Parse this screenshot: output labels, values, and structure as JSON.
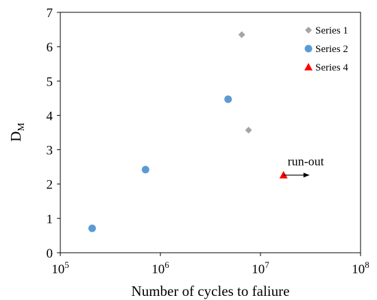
{
  "chart_data": {
    "type": "scatter",
    "title": "",
    "xlabel": "Number of cycles to faliure",
    "ylabel": "D",
    "ylabel_sub": "M",
    "xscale": "log",
    "xlim": [
      100000,
      100000000
    ],
    "ylim": [
      0,
      7
    ],
    "x_ticks": [
      {
        "value": 100000,
        "base": "10",
        "exp": "5"
      },
      {
        "value": 1000000,
        "base": "10",
        "exp": "6"
      },
      {
        "value": 10000000,
        "base": "10",
        "exp": "7"
      },
      {
        "value": 100000000,
        "base": "10",
        "exp": "8"
      }
    ],
    "y_ticks": [
      "0",
      "1",
      "2",
      "3",
      "4",
      "5",
      "6",
      "7"
    ],
    "grid": false,
    "legend_position": "top-right",
    "series": [
      {
        "name": "Series 1",
        "marker": "diamond",
        "color": "#a5a5a5",
        "points": [
          {
            "x": 6500000,
            "y": 6.35
          },
          {
            "x": 7600000,
            "y": 3.57
          }
        ]
      },
      {
        "name": "Series 2",
        "marker": "circle",
        "color": "#5b9bd5",
        "points": [
          {
            "x": 208000,
            "y": 0.71
          },
          {
            "x": 710000,
            "y": 2.42
          },
          {
            "x": 4750000,
            "y": 4.47
          }
        ]
      },
      {
        "name": "Series 4",
        "marker": "triangle",
        "color": "#ff0000",
        "points": [
          {
            "x": 17000000,
            "y": 2.26
          }
        ]
      }
    ],
    "annotations": [
      {
        "text": "run-out",
        "arrow_from": {
          "x": 17000000,
          "y": 2.26
        },
        "arrow_to": {
          "x": 31000000,
          "y": 2.26
        }
      }
    ]
  }
}
